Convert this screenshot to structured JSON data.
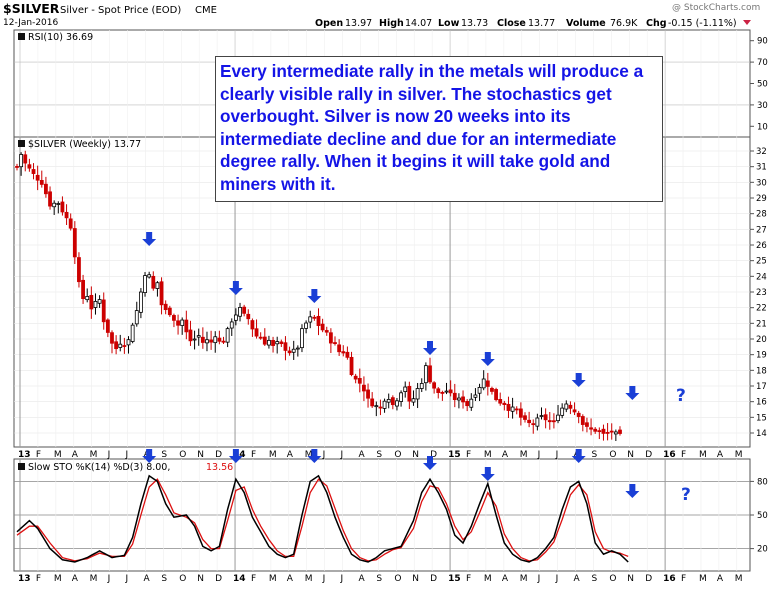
{
  "header": {
    "symbol": "$SILVER",
    "description": "Silver - Spot Price (EOD)",
    "exchange": "CME",
    "date": "12-Jan-2016",
    "open_label": "Open",
    "open": "13.97",
    "high_label": "High",
    "high": "14.07",
    "low_label": "Low",
    "low": "13.73",
    "close_label": "Close",
    "close": "13.77",
    "volume_label": "Volume",
    "volume": "76.9K",
    "chg_label": "Chg",
    "chg": "-0.15 (-1.11%)",
    "credit": "@ StockCharts.com"
  },
  "annotation_text": "Every intermediate rally in the metals will produce a clearly visible rally in silver. The stochastics get overbought. Silver is now 20 weeks into its intermediate decline and due for an intermediate degree rally. When it begins it will take gold and miners with it.",
  "question_mark": "?",
  "colors": {
    "up": "#000000",
    "down": "#cc0000",
    "arrow": "#1a3fd6",
    "text": "#1414e6",
    "k_line": "#000000",
    "d_line": "#dd1111",
    "rsi_text": "#000000"
  },
  "chart_data": [
    {
      "type": "line",
      "panel": "RSI",
      "legend": "RSI(10) 36.69",
      "y_ticks": [
        "90",
        "70",
        "50",
        "30",
        "10"
      ],
      "ylim": [
        0,
        100
      ]
    },
    {
      "type": "candlestick",
      "panel": "price",
      "legend": "$SILVER (Weekly) 13.77",
      "y_ticks": [
        "32",
        "31",
        "30",
        "29",
        "28",
        "27",
        "26",
        "25",
        "24",
        "23",
        "22",
        "21",
        "20",
        "19",
        "18",
        "17",
        "16",
        "15",
        "14"
      ],
      "ylim": [
        13.3,
        32.7
      ],
      "x_labels": [
        "13",
        "F",
        "M",
        "A",
        "M",
        "J",
        "J",
        "A",
        "S",
        "O",
        "N",
        "D",
        "14",
        "F",
        "M",
        "A",
        "M",
        "J",
        "J",
        "A",
        "S",
        "O",
        "N",
        "D",
        "15",
        "F",
        "M",
        "A",
        "M",
        "J",
        "J",
        "A",
        "S",
        "O",
        "N",
        "D",
        "16",
        "F",
        "M",
        "A",
        "M"
      ],
      "anchors": [
        [
          0,
          31.0
        ],
        [
          1,
          31.8
        ],
        [
          2,
          31.2
        ],
        [
          4,
          30.5
        ],
        [
          6,
          30.0
        ],
        [
          8,
          28.6
        ],
        [
          10,
          28.7
        ],
        [
          11,
          28.2
        ],
        [
          13,
          27.2
        ],
        [
          14,
          25.4
        ],
        [
          15,
          23.5
        ],
        [
          16,
          22.6
        ],
        [
          17,
          22.8
        ],
        [
          18,
          22.0
        ],
        [
          20,
          22.5
        ],
        [
          21,
          21.2
        ],
        [
          22,
          20.5
        ],
        [
          23,
          19.7
        ],
        [
          24,
          19.4
        ],
        [
          25,
          19.8
        ],
        [
          26,
          19.7
        ],
        [
          27,
          19.9
        ],
        [
          28,
          21.0
        ],
        [
          29,
          21.8
        ],
        [
          30,
          23.0
        ],
        [
          31,
          24.2
        ],
        [
          32,
          24.0
        ],
        [
          33,
          23.2
        ],
        [
          34,
          23.6
        ],
        [
          35,
          22.2
        ],
        [
          36,
          21.8
        ],
        [
          37,
          21.7
        ],
        [
          38,
          21.3
        ],
        [
          39,
          20.9
        ],
        [
          40,
          21.2
        ],
        [
          41,
          20.4
        ],
        [
          42,
          19.9
        ],
        [
          43,
          20.0
        ],
        [
          44,
          20.2
        ],
        [
          45,
          19.8
        ],
        [
          46,
          19.9
        ],
        [
          47,
          19.8
        ],
        [
          48,
          20.3
        ],
        [
          49,
          19.8
        ],
        [
          50,
          19.9
        ],
        [
          51,
          20.5
        ],
        [
          52,
          21.2
        ],
        [
          53,
          21.6
        ],
        [
          54,
          21.9
        ],
        [
          55,
          21.5
        ],
        [
          56,
          21.3
        ],
        [
          57,
          20.7
        ],
        [
          58,
          20.2
        ],
        [
          59,
          20.1
        ],
        [
          60,
          19.8
        ],
        [
          61,
          19.9
        ],
        [
          62,
          19.5
        ],
        [
          63,
          19.7
        ],
        [
          64,
          19.6
        ],
        [
          65,
          19.4
        ],
        [
          66,
          19.2
        ],
        [
          67,
          19.2
        ],
        [
          68,
          19.5
        ],
        [
          69,
          20.5
        ],
        [
          70,
          21.0
        ],
        [
          71,
          21.3
        ],
        [
          72,
          21.3
        ],
        [
          73,
          20.9
        ],
        [
          74,
          20.6
        ],
        [
          75,
          20.3
        ],
        [
          76,
          19.9
        ],
        [
          77,
          19.6
        ],
        [
          78,
          19.2
        ],
        [
          79,
          19.2
        ],
        [
          80,
          18.8
        ],
        [
          81,
          17.9
        ],
        [
          82,
          17.4
        ],
        [
          83,
          17.2
        ],
        [
          84,
          16.8
        ],
        [
          85,
          16.1
        ],
        [
          86,
          15.9
        ],
        [
          87,
          15.7
        ],
        [
          88,
          15.6
        ],
        [
          89,
          16.2
        ],
        [
          90,
          16.3
        ],
        [
          91,
          15.8
        ],
        [
          92,
          16.2
        ],
        [
          93,
          16.7
        ],
        [
          94,
          17.0
        ],
        [
          95,
          15.9
        ],
        [
          96,
          16.2
        ],
        [
          97,
          16.8
        ],
        [
          98,
          17.3
        ],
        [
          99,
          18.2
        ],
        [
          100,
          17.4
        ],
        [
          101,
          16.9
        ],
        [
          102,
          16.5
        ],
        [
          103,
          16.6
        ],
        [
          104,
          16.7
        ],
        [
          105,
          16.4
        ],
        [
          106,
          16.2
        ],
        [
          107,
          16.1
        ],
        [
          108,
          16.1
        ],
        [
          109,
          15.8
        ],
        [
          110,
          16.2
        ],
        [
          111,
          16.6
        ],
        [
          112,
          17.0
        ],
        [
          113,
          17.4
        ],
        [
          114,
          17.1
        ],
        [
          115,
          16.6
        ],
        [
          116,
          16.2
        ],
        [
          117,
          16.0
        ],
        [
          118,
          15.9
        ],
        [
          119,
          15.6
        ],
        [
          120,
          15.5
        ],
        [
          121,
          15.4
        ],
        [
          122,
          15.0
        ],
        [
          123,
          14.7
        ],
        [
          124,
          14.6
        ],
        [
          125,
          14.6
        ],
        [
          126,
          14.8
        ],
        [
          127,
          15.0
        ],
        [
          128,
          14.9
        ],
        [
          129,
          14.7
        ],
        [
          130,
          14.6
        ],
        [
          131,
          15.3
        ],
        [
          132,
          15.6
        ],
        [
          133,
          15.9
        ],
        [
          134,
          15.7
        ],
        [
          135,
          15.4
        ],
        [
          136,
          15.2
        ],
        [
          137,
          14.6
        ],
        [
          138,
          14.3
        ],
        [
          139,
          14.2
        ],
        [
          140,
          14.2
        ],
        [
          141,
          14.1
        ],
        [
          142,
          13.9
        ],
        [
          143,
          14.0
        ],
        [
          144,
          14.1
        ],
        [
          145,
          13.9
        ],
        [
          146,
          13.8
        ]
      ],
      "rally_arrow_weeks": [
        32,
        53,
        72,
        100,
        114,
        136,
        149
      ],
      "question_week": 149
    },
    {
      "type": "line",
      "panel": "stochastics",
      "legend": "Slow STO %K(14) %D(3) 8.00,",
      "legend_d": "13.56",
      "y_ticks": [
        "80",
        "50",
        "20"
      ],
      "ylim": [
        0,
        100
      ],
      "x_labels": [
        "13",
        "F",
        "M",
        "A",
        "M",
        "J",
        "J",
        "A",
        "S",
        "O",
        "N",
        "D",
        "14",
        "F",
        "M",
        "A",
        "M",
        "J",
        "J",
        "A",
        "S",
        "O",
        "N",
        "D",
        "15",
        "F",
        "M",
        "A",
        "M",
        "J",
        "J",
        "A",
        "S",
        "O",
        "N",
        "D",
        "16",
        "F",
        "M",
        "A",
        "M"
      ],
      "k_anchors": [
        [
          0,
          35
        ],
        [
          3,
          45
        ],
        [
          5,
          38
        ],
        [
          8,
          20
        ],
        [
          11,
          10
        ],
        [
          14,
          8
        ],
        [
          17,
          12
        ],
        [
          20,
          18
        ],
        [
          23,
          12
        ],
        [
          26,
          14
        ],
        [
          28,
          30
        ],
        [
          30,
          60
        ],
        [
          32,
          85
        ],
        [
          34,
          80
        ],
        [
          36,
          60
        ],
        [
          38,
          48
        ],
        [
          41,
          50
        ],
        [
          43,
          40
        ],
        [
          45,
          22
        ],
        [
          47,
          18
        ],
        [
          49,
          22
        ],
        [
          51,
          55
        ],
        [
          53,
          82
        ],
        [
          55,
          70
        ],
        [
          57,
          48
        ],
        [
          59,
          35
        ],
        [
          61,
          22
        ],
        [
          63,
          15
        ],
        [
          65,
          12
        ],
        [
          67,
          15
        ],
        [
          69,
          50
        ],
        [
          71,
          80
        ],
        [
          73,
          85
        ],
        [
          75,
          70
        ],
        [
          77,
          48
        ],
        [
          79,
          30
        ],
        [
          81,
          15
        ],
        [
          83,
          10
        ],
        [
          85,
          8
        ],
        [
          87,
          12
        ],
        [
          89,
          18
        ],
        [
          91,
          20
        ],
        [
          93,
          22
        ],
        [
          96,
          45
        ],
        [
          98,
          70
        ],
        [
          100,
          82
        ],
        [
          102,
          70
        ],
        [
          104,
          55
        ],
        [
          106,
          32
        ],
        [
          108,
          25
        ],
        [
          110,
          40
        ],
        [
          112,
          60
        ],
        [
          114,
          78
        ],
        [
          116,
          50
        ],
        [
          118,
          25
        ],
        [
          120,
          15
        ],
        [
          122,
          10
        ],
        [
          124,
          8
        ],
        [
          126,
          12
        ],
        [
          128,
          20
        ],
        [
          130,
          30
        ],
        [
          132,
          55
        ],
        [
          134,
          75
        ],
        [
          136,
          80
        ],
        [
          138,
          60
        ],
        [
          140,
          25
        ],
        [
          142,
          15
        ],
        [
          144,
          18
        ],
        [
          146,
          15
        ],
        [
          148,
          8
        ]
      ],
      "d_anchors": [
        [
          0,
          32
        ],
        [
          3,
          40
        ],
        [
          5,
          40
        ],
        [
          8,
          25
        ],
        [
          11,
          12
        ],
        [
          14,
          9
        ],
        [
          17,
          11
        ],
        [
          20,
          16
        ],
        [
          23,
          13
        ],
        [
          26,
          13
        ],
        [
          28,
          24
        ],
        [
          30,
          50
        ],
        [
          32,
          75
        ],
        [
          34,
          82
        ],
        [
          36,
          68
        ],
        [
          38,
          52
        ],
        [
          41,
          48
        ],
        [
          43,
          43
        ],
        [
          45,
          28
        ],
        [
          47,
          20
        ],
        [
          49,
          20
        ],
        [
          51,
          45
        ],
        [
          53,
          72
        ],
        [
          55,
          75
        ],
        [
          57,
          55
        ],
        [
          59,
          40
        ],
        [
          61,
          28
        ],
        [
          63,
          18
        ],
        [
          65,
          13
        ],
        [
          67,
          13
        ],
        [
          69,
          40
        ],
        [
          71,
          70
        ],
        [
          73,
          82
        ],
        [
          75,
          76
        ],
        [
          77,
          56
        ],
        [
          79,
          36
        ],
        [
          81,
          20
        ],
        [
          83,
          12
        ],
        [
          85,
          9
        ],
        [
          87,
          10
        ],
        [
          89,
          15
        ],
        [
          91,
          19
        ],
        [
          93,
          21
        ],
        [
          96,
          38
        ],
        [
          98,
          62
        ],
        [
          100,
          76
        ],
        [
          102,
          74
        ],
        [
          104,
          60
        ],
        [
          106,
          40
        ],
        [
          108,
          28
        ],
        [
          110,
          35
        ],
        [
          112,
          52
        ],
        [
          114,
          70
        ],
        [
          116,
          58
        ],
        [
          118,
          33
        ],
        [
          120,
          20
        ],
        [
          122,
          12
        ],
        [
          124,
          9
        ],
        [
          126,
          10
        ],
        [
          128,
          17
        ],
        [
          130,
          26
        ],
        [
          132,
          46
        ],
        [
          134,
          68
        ],
        [
          136,
          77
        ],
        [
          138,
          68
        ],
        [
          140,
          35
        ],
        [
          142,
          20
        ],
        [
          144,
          17
        ],
        [
          146,
          16
        ],
        [
          148,
          13
        ]
      ],
      "rally_arrow_weeks": [
        32,
        53,
        72,
        100,
        114,
        136,
        149
      ],
      "question_week": 149
    }
  ]
}
